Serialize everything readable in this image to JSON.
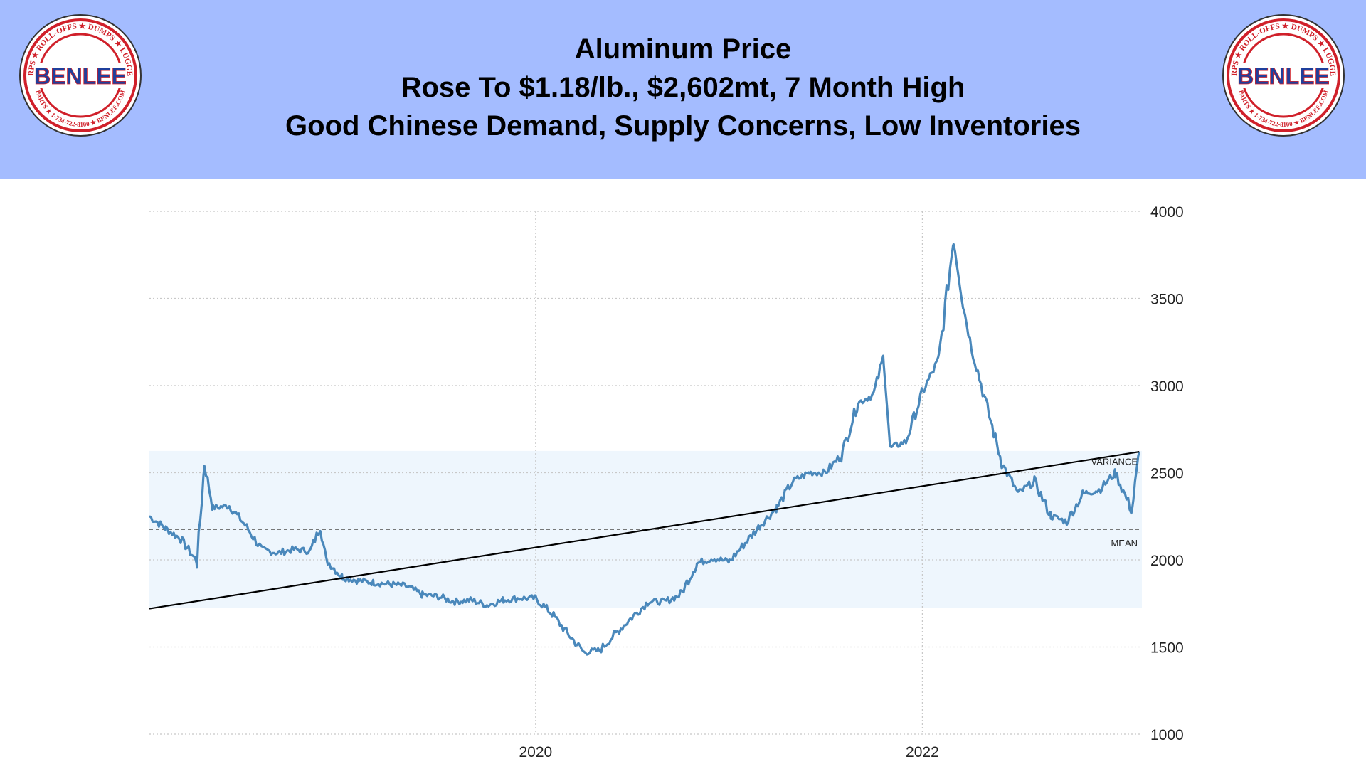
{
  "header": {
    "title_lines": [
      "Aluminum Price",
      "Rose To $1.18/lb., $2,602mt, 7 Month High",
      "Good Chinese Demand, Supply Concerns, Low Inventories"
    ],
    "background_color": "#a4bcff"
  },
  "logo": {
    "brand": "BENLEE",
    "ring_text": "TARPS ★ ROLL-OFFS ★ DUMPS ★ LUGGERS",
    "ring_text_bottom": "PARTS ★ 1-734-722-8100 ★ BENLEE.COM",
    "colors": {
      "ring": "#d0202a",
      "brand": "#1f3f9c"
    }
  },
  "chart_data": {
    "type": "line",
    "title": "",
    "xlabel": "",
    "ylabel": "",
    "x_tick_labels": [
      "2020",
      "2022"
    ],
    "y_tick_labels": [
      "1000",
      "1500",
      "2000",
      "2500",
      "3000",
      "3500",
      "4000"
    ],
    "ylim": [
      1000,
      4000
    ],
    "grid": true,
    "y_axis_side": "right",
    "series": [
      {
        "color": "#4a88bb",
        "points": [
          [
            "2018-01",
            2250
          ],
          [
            "2018-02",
            2180
          ],
          [
            "2018-03",
            2120
          ],
          [
            "2018-04",
            1990
          ],
          [
            "2018-04-15",
            2550
          ],
          [
            "2018-05",
            2300
          ],
          [
            "2018-06",
            2310
          ],
          [
            "2018-07",
            2200
          ],
          [
            "2018-08",
            2060
          ],
          [
            "2018-09",
            2040
          ],
          [
            "2018-10",
            2060
          ],
          [
            "2018-11",
            2050
          ],
          [
            "2018-11-20",
            2190
          ],
          [
            "2018-12",
            2000
          ],
          [
            "2019-01",
            1900
          ],
          [
            "2019-02",
            1880
          ],
          [
            "2019-03",
            1870
          ],
          [
            "2019-04",
            1860
          ],
          [
            "2019-05",
            1850
          ],
          [
            "2019-06",
            1800
          ],
          [
            "2019-07",
            1790
          ],
          [
            "2019-08",
            1760
          ],
          [
            "2019-09",
            1770
          ],
          [
            "2019-10",
            1740
          ],
          [
            "2019-11",
            1770
          ],
          [
            "2019-12",
            1780
          ],
          [
            "2020-01",
            1780
          ],
          [
            "2020-02",
            1690
          ],
          [
            "2020-03",
            1580
          ],
          [
            "2020-04",
            1470
          ],
          [
            "2020-05",
            1480
          ],
          [
            "2020-06",
            1580
          ],
          [
            "2020-07",
            1670
          ],
          [
            "2020-08",
            1760
          ],
          [
            "2020-09",
            1760
          ],
          [
            "2020-10",
            1800
          ],
          [
            "2020-11",
            1980
          ],
          [
            "2020-12",
            2010
          ],
          [
            "2021-01",
            1990
          ],
          [
            "2021-02",
            2100
          ],
          [
            "2021-03",
            2200
          ],
          [
            "2021-04",
            2300
          ],
          [
            "2021-05",
            2450
          ],
          [
            "2021-06",
            2500
          ],
          [
            "2021-07",
            2500
          ],
          [
            "2021-08",
            2600
          ],
          [
            "2021-09",
            2900
          ],
          [
            "2021-10",
            2950
          ],
          [
            "2021-10-20",
            3170
          ],
          [
            "2021-11",
            2640
          ],
          [
            "2021-12",
            2680
          ],
          [
            "2022-01",
            2960
          ],
          [
            "2022-02",
            3150
          ],
          [
            "2022-03",
            3840
          ],
          [
            "2022-03-20",
            3450
          ],
          [
            "2022-04",
            3260
          ],
          [
            "2022-05",
            2900
          ],
          [
            "2022-06",
            2550
          ],
          [
            "2022-07",
            2380
          ],
          [
            "2022-08",
            2450
          ],
          [
            "2022-09",
            2250
          ],
          [
            "2022-10",
            2220
          ],
          [
            "2022-11",
            2380
          ],
          [
            "2022-12",
            2400
          ],
          [
            "2023-01",
            2500
          ],
          [
            "2023-02",
            2280
          ],
          [
            "2023-02-15",
            2620
          ]
        ]
      }
    ],
    "trend_line": {
      "start": [
        "2018-01",
        1720
      ],
      "end": [
        "2023-02-15",
        2620
      ],
      "color": "#000000"
    },
    "mean": {
      "label": "MEAN",
      "value": 2175
    },
    "variance_band": {
      "label": "VARIANCE",
      "range": [
        1725,
        2625
      ],
      "color": "#eef6fd"
    }
  }
}
